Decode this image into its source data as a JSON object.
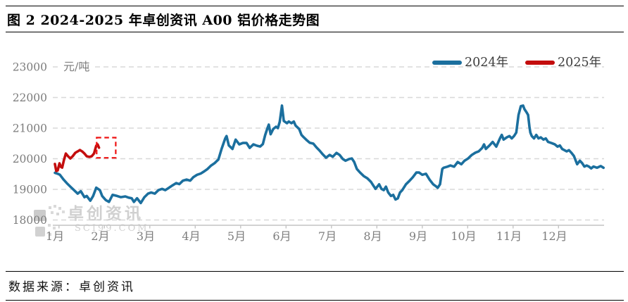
{
  "header": {
    "title": "图 2 2024-2025 年卓创资讯 A00 铝价格走势图"
  },
  "footer": {
    "source": "数据来源：卓创资讯"
  },
  "watermark": {
    "brand": "卓创资讯",
    "site": "SCI99.COM"
  },
  "colors": {
    "grid": "#D8D8D8",
    "axis_text": "#7D7D7D",
    "axis_line": "#C4C4C4",
    "series_2024": "#1B6F9E",
    "series_2025": "#C30D0D",
    "annotation_red": "#EE1111",
    "watermark": "#D0D0D0"
  },
  "chart_data": {
    "type": "line",
    "title": "图 2 2024-2025 年卓创资讯 A00 铝价格走势图",
    "unit_label": "元/吨",
    "xlabel": "",
    "ylabel": "元/吨",
    "ylim": [
      18000,
      23000
    ],
    "y_ticks": [
      23000,
      22000,
      21000,
      20000,
      19000,
      18000
    ],
    "x_tick_labels": [
      "1月",
      "2月",
      "3月",
      "4月",
      "5月",
      "6月",
      "7月",
      "8月",
      "9月",
      "10月",
      "11月",
      "12月"
    ],
    "x_unit": "month (1.0 = Jan 1, 13.0 = Dec 31)",
    "grid": "horizontal-dashed",
    "legend_position": "top-right",
    "series": [
      {
        "name": "2024年",
        "color": "#1B6F9E",
        "points": [
          [
            1.0,
            19540
          ],
          [
            1.06,
            19510
          ],
          [
            1.11,
            19475
          ],
          [
            1.19,
            19320
          ],
          [
            1.26,
            19205
          ],
          [
            1.34,
            19090
          ],
          [
            1.42,
            18975
          ],
          [
            1.5,
            18860
          ],
          [
            1.57,
            18940
          ],
          [
            1.65,
            18745
          ],
          [
            1.7,
            18785
          ],
          [
            1.78,
            18630
          ],
          [
            1.84,
            18780
          ],
          [
            1.91,
            19055
          ],
          [
            1.99,
            18975
          ],
          [
            2.04,
            18785
          ],
          [
            2.12,
            18650
          ],
          [
            2.19,
            18590
          ],
          [
            2.27,
            18820
          ],
          [
            2.37,
            18785
          ],
          [
            2.45,
            18745
          ],
          [
            2.55,
            18770
          ],
          [
            2.62,
            18730
          ],
          [
            2.69,
            18710
          ],
          [
            2.74,
            18590
          ],
          [
            2.81,
            18710
          ],
          [
            2.89,
            18555
          ],
          [
            2.97,
            18745
          ],
          [
            3.05,
            18860
          ],
          [
            3.12,
            18900
          ],
          [
            3.2,
            18860
          ],
          [
            3.28,
            18975
          ],
          [
            3.36,
            19015
          ],
          [
            3.43,
            18975
          ],
          [
            3.51,
            19050
          ],
          [
            3.59,
            19130
          ],
          [
            3.67,
            19205
          ],
          [
            3.74,
            19170
          ],
          [
            3.82,
            19285
          ],
          [
            3.9,
            19320
          ],
          [
            3.98,
            19285
          ],
          [
            4.05,
            19400
          ],
          [
            4.13,
            19475
          ],
          [
            4.21,
            19515
          ],
          [
            4.29,
            19590
          ],
          [
            4.36,
            19665
          ],
          [
            4.44,
            19780
          ],
          [
            4.52,
            19860
          ],
          [
            4.6,
            19975
          ],
          [
            4.67,
            20320
          ],
          [
            4.75,
            20665
          ],
          [
            4.78,
            20740
          ],
          [
            4.83,
            20435
          ],
          [
            4.91,
            20320
          ],
          [
            4.98,
            20625
          ],
          [
            5.06,
            20470
          ],
          [
            5.14,
            20515
          ],
          [
            5.22,
            20515
          ],
          [
            5.29,
            20355
          ],
          [
            5.37,
            20470
          ],
          [
            5.45,
            20425
          ],
          [
            5.52,
            20400
          ],
          [
            5.58,
            20480
          ],
          [
            5.63,
            20770
          ],
          [
            5.68,
            21000
          ],
          [
            5.71,
            21115
          ],
          [
            5.75,
            20800
          ],
          [
            5.81,
            20975
          ],
          [
            5.87,
            21045
          ],
          [
            5.91,
            21000
          ],
          [
            5.95,
            21205
          ],
          [
            6.0,
            21735
          ],
          [
            6.04,
            21235
          ],
          [
            6.11,
            21160
          ],
          [
            6.15,
            21215
          ],
          [
            6.21,
            21160
          ],
          [
            6.26,
            21215
          ],
          [
            6.3,
            21085
          ],
          [
            6.38,
            20970
          ],
          [
            6.43,
            20780
          ],
          [
            6.48,
            20700
          ],
          [
            6.55,
            20600
          ],
          [
            6.61,
            20525
          ],
          [
            6.69,
            20495
          ],
          [
            6.76,
            20370
          ],
          [
            6.83,
            20265
          ],
          [
            6.9,
            20140
          ],
          [
            6.97,
            20035
          ],
          [
            7.05,
            20125
          ],
          [
            7.12,
            20065
          ],
          [
            7.2,
            20190
          ],
          [
            7.27,
            20125
          ],
          [
            7.34,
            19990
          ],
          [
            7.4,
            19935
          ],
          [
            7.48,
            19990
          ],
          [
            7.54,
            20010
          ],
          [
            7.59,
            19895
          ],
          [
            7.65,
            19665
          ],
          [
            7.72,
            19550
          ],
          [
            7.8,
            19435
          ],
          [
            7.88,
            19360
          ],
          [
            7.96,
            19245
          ],
          [
            8.01,
            19130
          ],
          [
            8.06,
            19015
          ],
          [
            8.14,
            19165
          ],
          [
            8.19,
            19015
          ],
          [
            8.24,
            18975
          ],
          [
            8.29,
            19090
          ],
          [
            8.34,
            18900
          ],
          [
            8.4,
            18785
          ],
          [
            8.45,
            18820
          ],
          [
            8.5,
            18670
          ],
          [
            8.55,
            18705
          ],
          [
            8.6,
            18900
          ],
          [
            8.65,
            18975
          ],
          [
            8.73,
            19165
          ],
          [
            8.81,
            19280
          ],
          [
            8.88,
            19395
          ],
          [
            8.96,
            19550
          ],
          [
            9.02,
            19550
          ],
          [
            9.09,
            19475
          ],
          [
            9.17,
            19510
          ],
          [
            9.25,
            19320
          ],
          [
            9.33,
            19165
          ],
          [
            9.4,
            19090
          ],
          [
            9.43,
            19050
          ],
          [
            9.48,
            19165
          ],
          [
            9.53,
            19665
          ],
          [
            9.56,
            19705
          ],
          [
            9.64,
            19740
          ],
          [
            9.71,
            19780
          ],
          [
            9.79,
            19740
          ],
          [
            9.87,
            19895
          ],
          [
            9.95,
            19820
          ],
          [
            10.02,
            19935
          ],
          [
            10.1,
            20010
          ],
          [
            10.18,
            20125
          ],
          [
            10.26,
            20200
          ],
          [
            10.33,
            20240
          ],
          [
            10.41,
            20355
          ],
          [
            10.45,
            20470
          ],
          [
            10.49,
            20320
          ],
          [
            10.57,
            20435
          ],
          [
            10.64,
            20550
          ],
          [
            10.72,
            20395
          ],
          [
            10.8,
            20665
          ],
          [
            10.84,
            20780
          ],
          [
            10.88,
            20625
          ],
          [
            10.95,
            20700
          ],
          [
            11.01,
            20740
          ],
          [
            11.06,
            20665
          ],
          [
            11.11,
            20740
          ],
          [
            11.16,
            20855
          ],
          [
            11.21,
            21430
          ],
          [
            11.26,
            21720
          ],
          [
            11.31,
            21735
          ],
          [
            11.34,
            21620
          ],
          [
            11.39,
            21505
          ],
          [
            11.42,
            21430
          ],
          [
            11.45,
            21045
          ],
          [
            11.47,
            20855
          ],
          [
            11.5,
            20740
          ],
          [
            11.55,
            20665
          ],
          [
            11.6,
            20780
          ],
          [
            11.65,
            20665
          ],
          [
            11.7,
            20700
          ],
          [
            11.76,
            20625
          ],
          [
            11.81,
            20665
          ],
          [
            11.86,
            20550
          ],
          [
            11.94,
            20510
          ],
          [
            12.01,
            20470
          ],
          [
            12.07,
            20395
          ],
          [
            12.12,
            20435
          ],
          [
            12.17,
            20320
          ],
          [
            12.22,
            20280
          ],
          [
            12.27,
            20240
          ],
          [
            12.32,
            20280
          ],
          [
            12.37,
            20200
          ],
          [
            12.43,
            20090
          ],
          [
            12.48,
            19895
          ],
          [
            12.5,
            19820
          ],
          [
            12.56,
            19935
          ],
          [
            12.61,
            19860
          ],
          [
            12.66,
            19745
          ],
          [
            12.71,
            19780
          ],
          [
            12.76,
            19745
          ],
          [
            12.81,
            19685
          ],
          [
            12.86,
            19745
          ],
          [
            12.94,
            19705
          ],
          [
            13.02,
            19760
          ],
          [
            13.08,
            19705
          ]
        ]
      },
      {
        "name": "2025年",
        "color": "#C30D0D",
        "points": [
          [
            1.0,
            19830
          ],
          [
            1.03,
            19600
          ],
          [
            1.06,
            19615
          ],
          [
            1.1,
            19850
          ],
          [
            1.13,
            19735
          ],
          [
            1.16,
            19710
          ],
          [
            1.2,
            19965
          ],
          [
            1.24,
            20170
          ],
          [
            1.29,
            20080
          ],
          [
            1.34,
            20010
          ],
          [
            1.39,
            20080
          ],
          [
            1.45,
            20195
          ],
          [
            1.5,
            20240
          ],
          [
            1.55,
            20285
          ],
          [
            1.6,
            20240
          ],
          [
            1.65,
            20170
          ],
          [
            1.7,
            20080
          ],
          [
            1.76,
            20060
          ],
          [
            1.81,
            20080
          ],
          [
            1.86,
            20170
          ],
          [
            1.91,
            20425
          ],
          [
            1.94,
            20470
          ],
          [
            1.97,
            20360
          ]
        ]
      }
    ],
    "annotation": {
      "kind": "dashed-box-highlight-latest-point",
      "color": "#EE1111",
      "x_months": [
        1.92,
        2.34
      ],
      "y_values": [
        20030,
        20690
      ]
    }
  }
}
